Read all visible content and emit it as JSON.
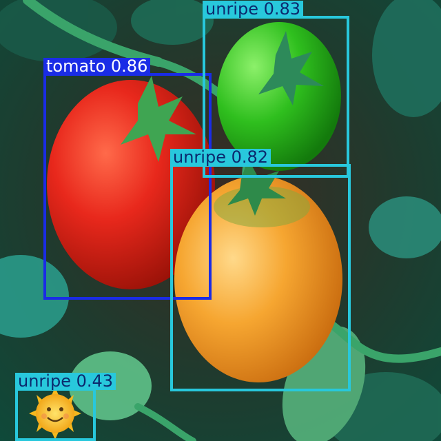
{
  "image": {
    "description_free": true
  },
  "detections": [
    {
      "label": "tomato 0.86",
      "class": "tomato",
      "score": 0.86,
      "color": "#1a2ce6",
      "text_color": "#ffffff"
    },
    {
      "label": "unripe 0.83",
      "class": "unripe",
      "score": 0.83,
      "color": "#28c8dc",
      "text_color": "#0b2a6e"
    },
    {
      "label": "unripe 0.82",
      "class": "unripe",
      "score": 0.82,
      "color": "#28c8dc",
      "text_color": "#0b2a6e"
    },
    {
      "label": "unripe 0.43",
      "class": "unripe",
      "score": 0.43,
      "color": "#28c8dc",
      "text_color": "#0b2a6e"
    }
  ]
}
